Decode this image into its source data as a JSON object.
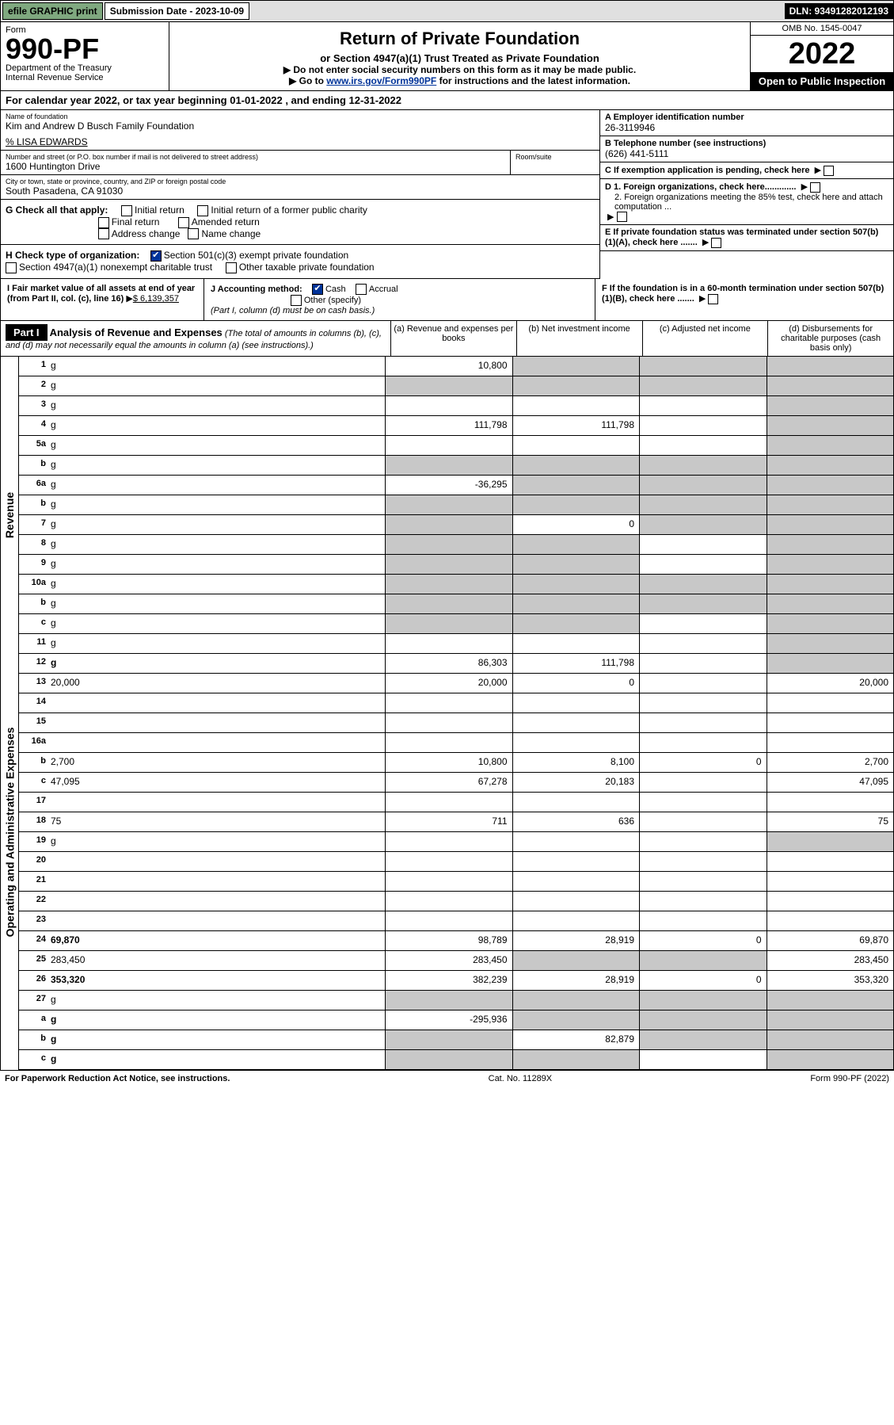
{
  "topbar": {
    "efile": "efile GRAPHIC print",
    "sub_label": "Submission Date - 2023-10-09",
    "dln": "DLN: 93491282012193"
  },
  "header": {
    "form_label": "Form",
    "form_no": "990-PF",
    "dept1": "Department of the Treasury",
    "dept2": "Internal Revenue Service",
    "title": "Return of Private Foundation",
    "subtitle": "or Section 4947(a)(1) Trust Treated as Private Foundation",
    "inst1": "▶ Do not enter social security numbers on this form as it may be made public.",
    "inst2_prefix": "▶ Go to",
    "inst2_link": "www.irs.gov/Form990PF",
    "inst2_suffix": "for instructions and the latest information.",
    "omb": "OMB No. 1545-0047",
    "year": "2022",
    "open": "Open to Public Inspection"
  },
  "cal_year": "For calendar year 2022, or tax year beginning 01-01-2022                         , and ending 12-31-2022",
  "info": {
    "name_lbl": "Name of foundation",
    "name_val": "Kim and Andrew D Busch Family Foundation",
    "care_of": "% LISA EDWARDS",
    "addr_lbl": "Number and street (or P.O. box number if mail is not delivered to street address)",
    "addr_val": "1600 Huntington Drive",
    "room_lbl": "Room/suite",
    "city_lbl": "City or town, state or province, country, and ZIP or foreign postal code",
    "city_val": "South Pasadena, CA  91030",
    "a_lbl": "A Employer identification number",
    "a_val": "26-3119946",
    "b_lbl": "B Telephone number (see instructions)",
    "b_val": "(626) 441-5111",
    "c_lbl": "C If exemption application is pending, check here",
    "d1": "D 1. Foreign organizations, check here.............",
    "d2": "2. Foreign organizations meeting the 85% test, check here and attach computation ...",
    "e_lbl": "E  If private foundation status was terminated under section 507(b)(1)(A), check here .......",
    "f_lbl": "F  If the foundation is in a 60-month termination under section 507(b)(1)(B), check here .......",
    "g_lbl": "G Check all that apply:",
    "g_initial": "Initial return",
    "g_initial_pub": "Initial return of a former public charity",
    "g_final": "Final return",
    "g_amended": "Amended return",
    "g_addr": "Address change",
    "g_name": "Name change",
    "h_lbl": "H Check type of organization:",
    "h_501": "Section 501(c)(3) exempt private foundation",
    "h_4947": "Section 4947(a)(1) nonexempt charitable trust",
    "h_other": "Other taxable private foundation",
    "i_lbl": "I Fair market value of all assets at end of year (from Part II, col. (c), line 16)",
    "i_val": "$  6,139,357",
    "j_lbl": "J Accounting method:",
    "j_cash": "Cash",
    "j_accr": "Accrual",
    "j_other": "Other (specify)",
    "j_note": "(Part I, column (d) must be on cash basis.)"
  },
  "part1": {
    "label": "Part I",
    "title": "Analysis of Revenue and Expenses",
    "title_note": "(The total of amounts in columns (b), (c), and (d) may not necessarily equal the amounts in column (a) (see instructions).)",
    "col_a": "(a) Revenue and expenses per books",
    "col_b": "(b) Net investment income",
    "col_c": "(c) Adjusted net income",
    "col_d": "(d) Disbursements for charitable purposes (cash basis only)"
  },
  "side": {
    "revenue": "Revenue",
    "expenses": "Operating and Administrative Expenses"
  },
  "rows": [
    {
      "n": "1",
      "d": "g",
      "a": "10,800",
      "b": "g",
      "c": "g"
    },
    {
      "n": "2",
      "d": "g",
      "a": "g",
      "b": "g",
      "c": "g"
    },
    {
      "n": "3",
      "d": "g",
      "a": "",
      "b": "",
      "c": ""
    },
    {
      "n": "4",
      "d": "g",
      "a": "111,798",
      "b": "111,798",
      "c": ""
    },
    {
      "n": "5a",
      "d": "g",
      "a": "",
      "b": "",
      "c": ""
    },
    {
      "n": "b",
      "d": "g",
      "a": "g",
      "b": "g",
      "c": "g"
    },
    {
      "n": "6a",
      "d": "g",
      "a": "-36,295",
      "b": "g",
      "c": "g"
    },
    {
      "n": "b",
      "d": "g",
      "a": "g",
      "b": "g",
      "c": "g"
    },
    {
      "n": "7",
      "d": "g",
      "a": "g",
      "b": "0",
      "c": "g"
    },
    {
      "n": "8",
      "d": "g",
      "a": "g",
      "b": "g",
      "c": ""
    },
    {
      "n": "9",
      "d": "g",
      "a": "g",
      "b": "g",
      "c": ""
    },
    {
      "n": "10a",
      "d": "g",
      "a": "g",
      "b": "g",
      "c": "g"
    },
    {
      "n": "b",
      "d": "g",
      "a": "g",
      "b": "g",
      "c": "g"
    },
    {
      "n": "c",
      "d": "g",
      "a": "g",
      "b": "g",
      "c": ""
    },
    {
      "n": "11",
      "d": "g",
      "a": "",
      "b": "",
      "c": ""
    },
    {
      "n": "12",
      "d": "g",
      "a": "86,303",
      "b": "111,798",
      "c": "",
      "bold": true
    }
  ],
  "rows2": [
    {
      "n": "13",
      "d": "20,000",
      "a": "20,000",
      "b": "0",
      "c": ""
    },
    {
      "n": "14",
      "d": "",
      "a": "",
      "b": "",
      "c": ""
    },
    {
      "n": "15",
      "d": "",
      "a": "",
      "b": "",
      "c": ""
    },
    {
      "n": "16a",
      "d": "",
      "a": "",
      "b": "",
      "c": ""
    },
    {
      "n": "b",
      "d": "2,700",
      "a": "10,800",
      "b": "8,100",
      "c": "0"
    },
    {
      "n": "c",
      "d": "47,095",
      "a": "67,278",
      "b": "20,183",
      "c": ""
    },
    {
      "n": "17",
      "d": "",
      "a": "",
      "b": "",
      "c": ""
    },
    {
      "n": "18",
      "d": "75",
      "a": "711",
      "b": "636",
      "c": ""
    },
    {
      "n": "19",
      "d": "g",
      "a": "",
      "b": "",
      "c": ""
    },
    {
      "n": "20",
      "d": "",
      "a": "",
      "b": "",
      "c": ""
    },
    {
      "n": "21",
      "d": "",
      "a": "",
      "b": "",
      "c": ""
    },
    {
      "n": "22",
      "d": "",
      "a": "",
      "b": "",
      "c": ""
    },
    {
      "n": "23",
      "d": "",
      "a": "",
      "b": "",
      "c": ""
    },
    {
      "n": "24",
      "d": "69,870",
      "a": "98,789",
      "b": "28,919",
      "c": "0",
      "bold": true
    },
    {
      "n": "25",
      "d": "283,450",
      "a": "283,450",
      "b": "g",
      "c": "g"
    },
    {
      "n": "26",
      "d": "353,320",
      "a": "382,239",
      "b": "28,919",
      "c": "0",
      "bold": true
    }
  ],
  "rows3": [
    {
      "n": "27",
      "d": "g",
      "a": "g",
      "b": "g",
      "c": "g"
    },
    {
      "n": "a",
      "d": "g",
      "a": "-295,936",
      "b": "g",
      "c": "g",
      "bold": true
    },
    {
      "n": "b",
      "d": "g",
      "a": "g",
      "b": "82,879",
      "c": "g",
      "bold": true
    },
    {
      "n": "c",
      "d": "g",
      "a": "g",
      "b": "g",
      "c": "",
      "bold": true
    }
  ],
  "footer": {
    "left": "For Paperwork Reduction Act Notice, see instructions.",
    "mid": "Cat. No. 11289X",
    "right": "Form 990-PF (2022)"
  }
}
